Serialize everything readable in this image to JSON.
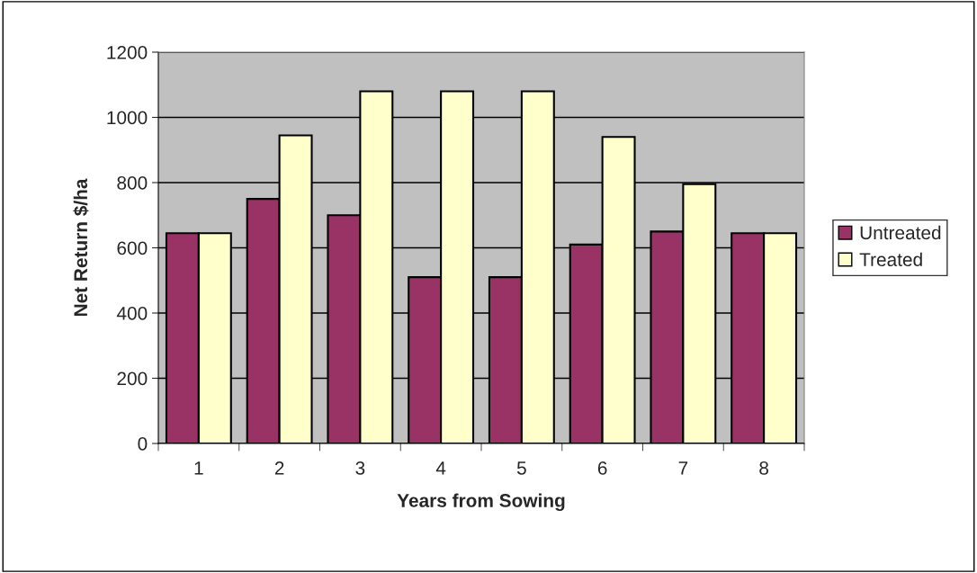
{
  "chart_data": {
    "type": "bar",
    "xlabel": "Years from Sowing",
    "ylabel": "Net Return $/ha",
    "categories": [
      "1",
      "2",
      "3",
      "4",
      "5",
      "6",
      "7",
      "8"
    ],
    "series": [
      {
        "name": "Untreated",
        "color": "#993366",
        "values": [
          645,
          750,
          700,
          510,
          510,
          610,
          650,
          645
        ]
      },
      {
        "name": "Treated",
        "color": "#ffffcc",
        "values": [
          645,
          945,
          1080,
          1080,
          1080,
          940,
          795,
          645
        ]
      }
    ],
    "ylim": [
      0,
      1200
    ],
    "yticks": [
      0,
      200,
      400,
      600,
      800,
      1000,
      1200
    ],
    "grid": "y",
    "legend": "right"
  }
}
